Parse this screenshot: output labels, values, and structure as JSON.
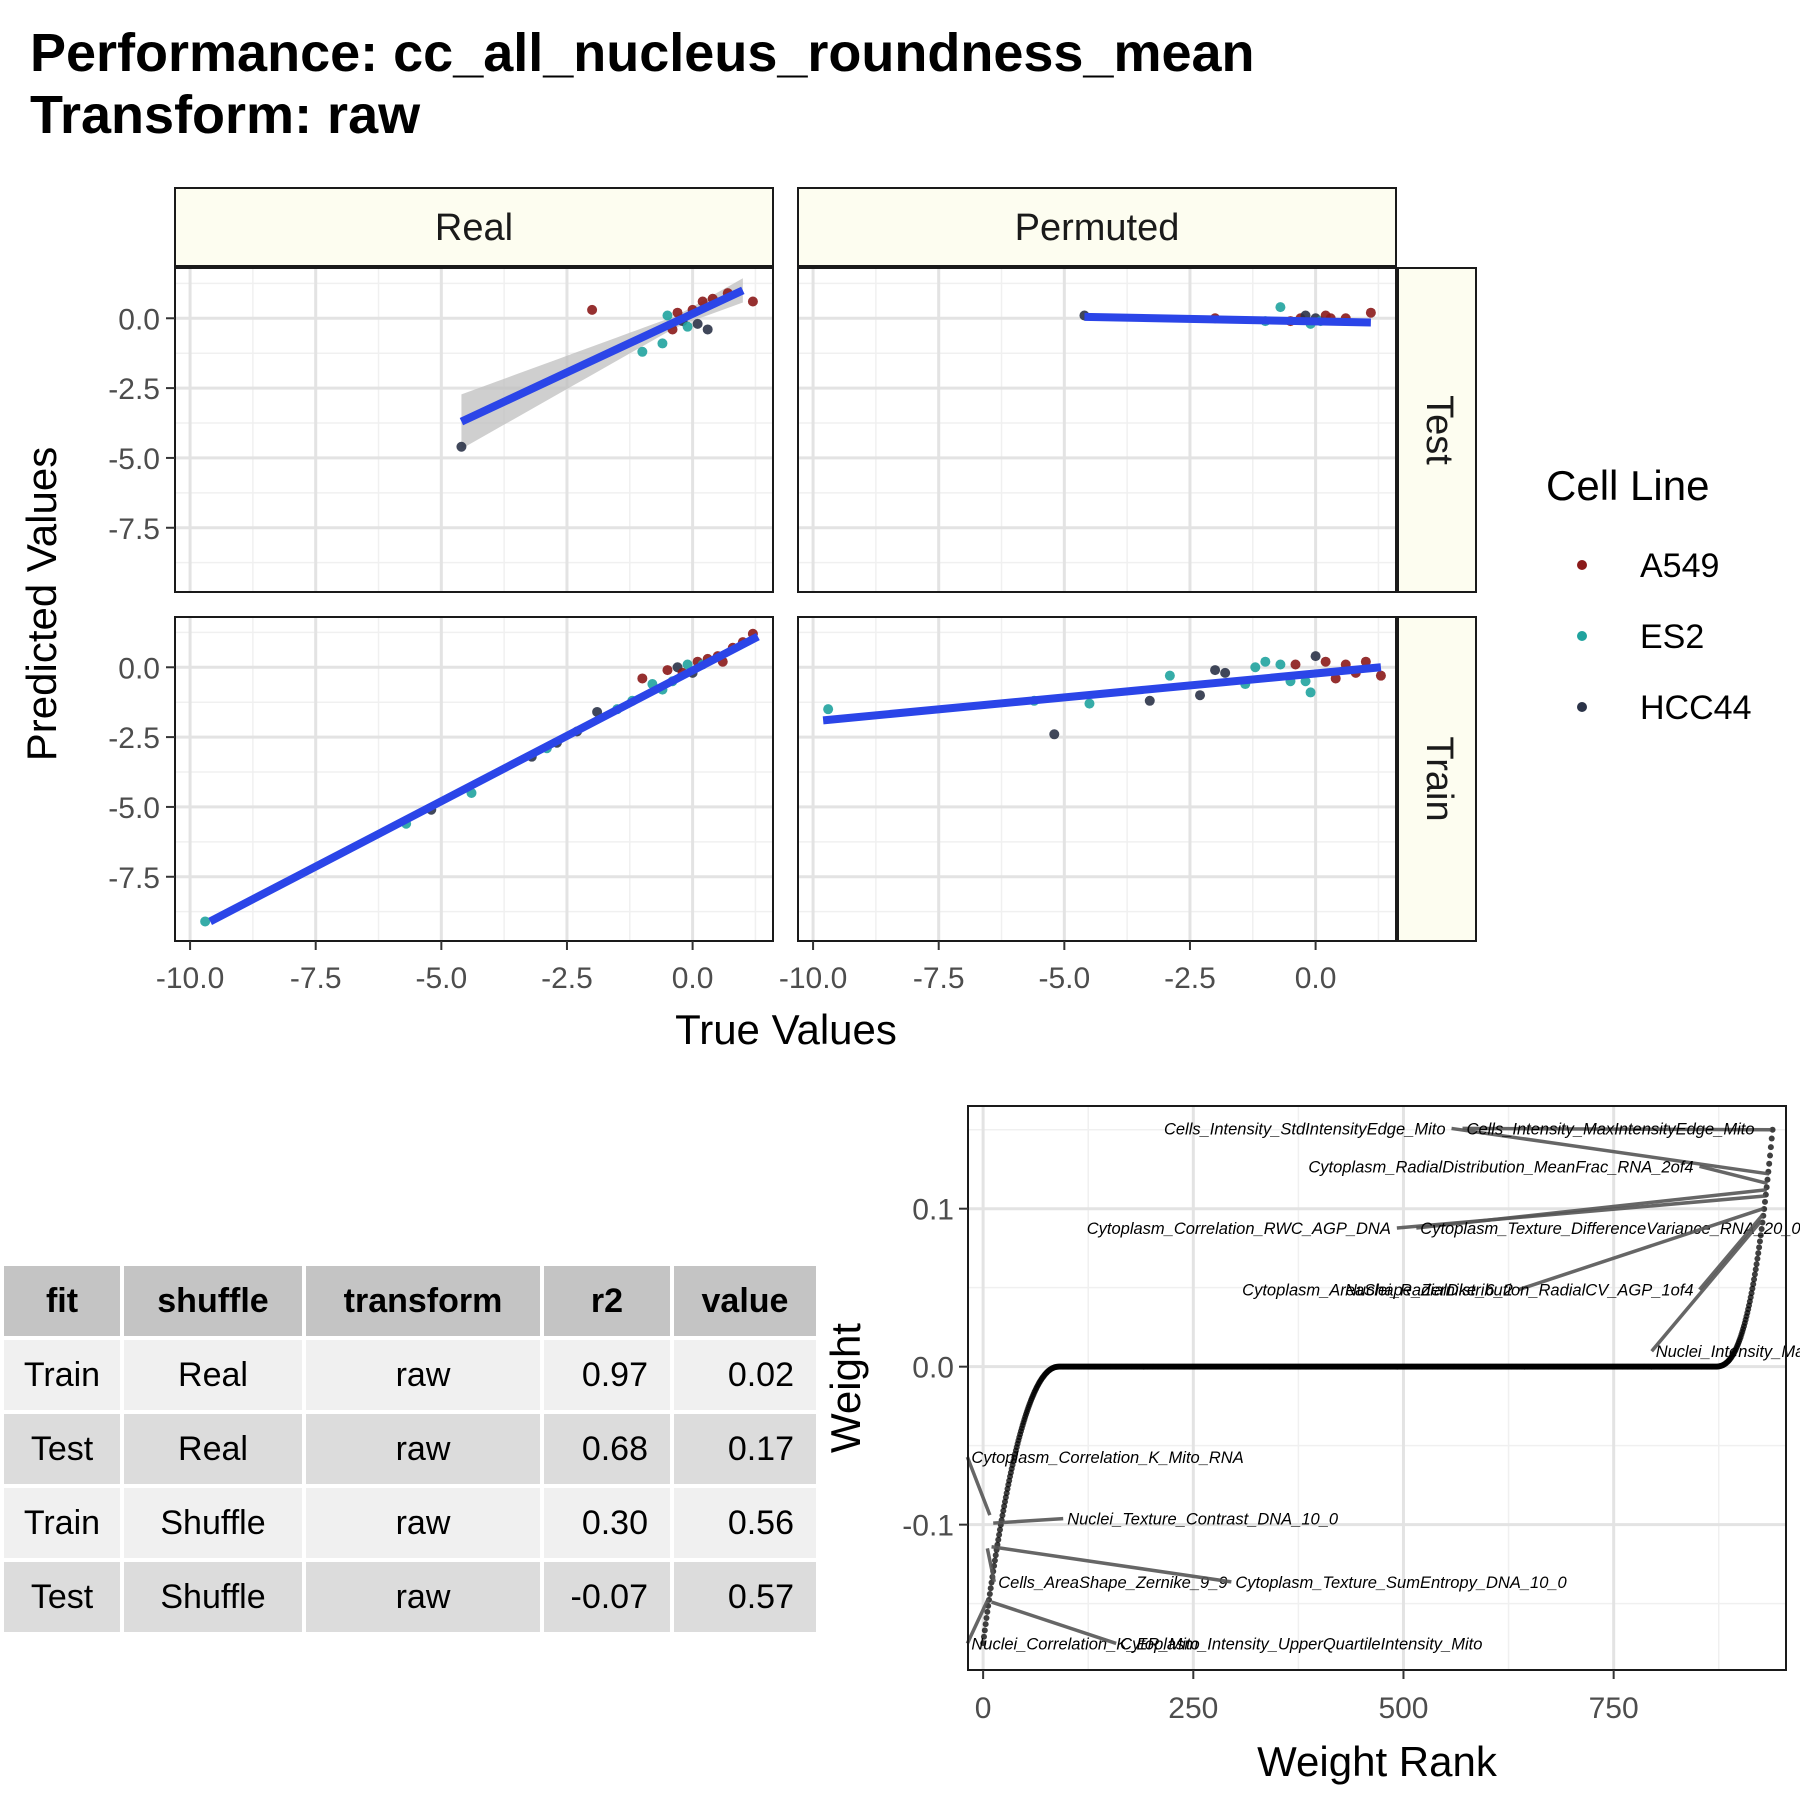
{
  "title_line1": "Performance: cc_all_nucleus_roundness_mean",
  "title_line2": "Transform: raw",
  "chart_data": [
    {
      "type": "scatter",
      "xlabel": "True Values",
      "ylabel": "Predicted Values",
      "xlim": [
        -10.3,
        1.6
      ],
      "ylim": [
        -9.8,
        1.8
      ],
      "x_ticks": [
        -10.0,
        -7.5,
        -5.0,
        -2.5,
        0.0
      ],
      "y_ticks": [
        0.0,
        -2.5,
        -5.0,
        -7.5
      ],
      "x_tick_labels": [
        "-10.0",
        "-7.5",
        "-5.0",
        "-2.5",
        "0.0"
      ],
      "y_tick_labels": [
        "0.0",
        "-2.5",
        "-5.0",
        "-7.5"
      ],
      "facet_columns": [
        "Real",
        "Permuted"
      ],
      "facet_rows": [
        "Test",
        "Train"
      ],
      "grid": true,
      "legend": {
        "title": "Cell Line",
        "position": "right",
        "entries": [
          {
            "name": "A549",
            "color": "#8b1a1a"
          },
          {
            "name": "ES2",
            "color": "#20a39e"
          },
          {
            "name": "HCC44",
            "color": "#2b3348"
          }
        ]
      },
      "fit_line_color": "#2b45e8",
      "panels": [
        {
          "column": "Real",
          "row": "Test",
          "fit": [
            [
              -4.6,
              -3.7
            ],
            [
              1.0,
              1.0
            ]
          ],
          "ci": true,
          "points": [
            {
              "x": -4.6,
              "y": -4.6,
              "g": "HCC44"
            },
            {
              "x": -2.0,
              "y": 0.3,
              "g": "A549"
            },
            {
              "x": -1.0,
              "y": -1.2,
              "g": "ES2"
            },
            {
              "x": -0.6,
              "y": -0.9,
              "g": "ES2"
            },
            {
              "x": -0.5,
              "y": 0.1,
              "g": "ES2"
            },
            {
              "x": -0.4,
              "y": -0.4,
              "g": "A549"
            },
            {
              "x": -0.3,
              "y": 0.2,
              "g": "A549"
            },
            {
              "x": -0.2,
              "y": -0.1,
              "g": "HCC44"
            },
            {
              "x": -0.1,
              "y": -0.3,
              "g": "ES2"
            },
            {
              "x": 0.0,
              "y": 0.3,
              "g": "A549"
            },
            {
              "x": 0.1,
              "y": -0.2,
              "g": "HCC44"
            },
            {
              "x": 0.2,
              "y": 0.6,
              "g": "A549"
            },
            {
              "x": 0.3,
              "y": -0.4,
              "g": "HCC44"
            },
            {
              "x": 0.4,
              "y": 0.7,
              "g": "A549"
            },
            {
              "x": 0.7,
              "y": 0.9,
              "g": "A549"
            },
            {
              "x": 1.2,
              "y": 0.6,
              "g": "A549"
            }
          ]
        },
        {
          "column": "Permuted",
          "row": "Test",
          "fit": [
            [
              -4.6,
              0.05
            ],
            [
              1.1,
              -0.15
            ]
          ],
          "ci": false,
          "points": [
            {
              "x": -4.6,
              "y": 0.1,
              "g": "HCC44"
            },
            {
              "x": -2.0,
              "y": 0.0,
              "g": "A549"
            },
            {
              "x": -1.0,
              "y": -0.1,
              "g": "ES2"
            },
            {
              "x": -0.7,
              "y": 0.4,
              "g": "ES2"
            },
            {
              "x": -0.5,
              "y": -0.1,
              "g": "A549"
            },
            {
              "x": -0.3,
              "y": 0.0,
              "g": "A549"
            },
            {
              "x": -0.2,
              "y": 0.1,
              "g": "HCC44"
            },
            {
              "x": -0.1,
              "y": -0.2,
              "g": "ES2"
            },
            {
              "x": 0.0,
              "y": 0.0,
              "g": "HCC44"
            },
            {
              "x": 0.1,
              "y": -0.1,
              "g": "ES2"
            },
            {
              "x": 0.2,
              "y": 0.1,
              "g": "A549"
            },
            {
              "x": 0.3,
              "y": 0.0,
              "g": "A549"
            },
            {
              "x": 0.6,
              "y": 0.0,
              "g": "A549"
            },
            {
              "x": 1.1,
              "y": 0.2,
              "g": "A549"
            }
          ]
        },
        {
          "column": "Real",
          "row": "Train",
          "fit": [
            [
              -9.6,
              -9.1
            ],
            [
              1.3,
              1.1
            ]
          ],
          "ci": false,
          "points": [
            {
              "x": -9.7,
              "y": -9.1,
              "g": "ES2"
            },
            {
              "x": -5.7,
              "y": -5.6,
              "g": "ES2"
            },
            {
              "x": -5.2,
              "y": -5.1,
              "g": "HCC44"
            },
            {
              "x": -4.4,
              "y": -4.5,
              "g": "ES2"
            },
            {
              "x": -3.2,
              "y": -3.2,
              "g": "HCC44"
            },
            {
              "x": -2.9,
              "y": -2.9,
              "g": "ES2"
            },
            {
              "x": -2.7,
              "y": -2.7,
              "g": "HCC44"
            },
            {
              "x": -2.3,
              "y": -2.3,
              "g": "HCC44"
            },
            {
              "x": -1.9,
              "y": -1.6,
              "g": "HCC44"
            },
            {
              "x": -1.5,
              "y": -1.5,
              "g": "ES2"
            },
            {
              "x": -1.2,
              "y": -1.2,
              "g": "ES2"
            },
            {
              "x": -1.0,
              "y": -0.4,
              "g": "A549"
            },
            {
              "x": -0.8,
              "y": -0.6,
              "g": "ES2"
            },
            {
              "x": -0.6,
              "y": -0.8,
              "g": "ES2"
            },
            {
              "x": -0.5,
              "y": -0.1,
              "g": "A549"
            },
            {
              "x": -0.4,
              "y": -0.5,
              "g": "ES2"
            },
            {
              "x": -0.3,
              "y": 0.0,
              "g": "HCC44"
            },
            {
              "x": -0.2,
              "y": -0.2,
              "g": "A549"
            },
            {
              "x": -0.1,
              "y": 0.1,
              "g": "ES2"
            },
            {
              "x": 0.0,
              "y": -0.2,
              "g": "HCC44"
            },
            {
              "x": 0.1,
              "y": 0.2,
              "g": "A549"
            },
            {
              "x": 0.2,
              "y": 0.1,
              "g": "ES2"
            },
            {
              "x": 0.3,
              "y": 0.3,
              "g": "A549"
            },
            {
              "x": 0.5,
              "y": 0.4,
              "g": "A549"
            },
            {
              "x": 0.6,
              "y": 0.2,
              "g": "A549"
            },
            {
              "x": 0.8,
              "y": 0.7,
              "g": "A549"
            },
            {
              "x": 1.0,
              "y": 0.9,
              "g": "A549"
            },
            {
              "x": 1.2,
              "y": 1.2,
              "g": "A549"
            }
          ]
        },
        {
          "column": "Permuted",
          "row": "Train",
          "fit": [
            [
              -9.8,
              -1.9
            ],
            [
              1.3,
              0.0
            ]
          ],
          "ci": false,
          "points": [
            {
              "x": -9.7,
              "y": -1.5,
              "g": "ES2"
            },
            {
              "x": -5.6,
              "y": -1.2,
              "g": "ES2"
            },
            {
              "x": -5.2,
              "y": -2.4,
              "g": "HCC44"
            },
            {
              "x": -4.5,
              "y": -1.3,
              "g": "ES2"
            },
            {
              "x": -3.3,
              "y": -1.2,
              "g": "HCC44"
            },
            {
              "x": -2.9,
              "y": -0.3,
              "g": "ES2"
            },
            {
              "x": -2.3,
              "y": -1.0,
              "g": "HCC44"
            },
            {
              "x": -2.0,
              "y": -0.1,
              "g": "HCC44"
            },
            {
              "x": -1.8,
              "y": -0.2,
              "g": "HCC44"
            },
            {
              "x": -1.4,
              "y": -0.6,
              "g": "ES2"
            },
            {
              "x": -1.2,
              "y": 0.0,
              "g": "ES2"
            },
            {
              "x": -1.0,
              "y": 0.2,
              "g": "ES2"
            },
            {
              "x": -0.7,
              "y": 0.1,
              "g": "ES2"
            },
            {
              "x": -0.5,
              "y": -0.5,
              "g": "ES2"
            },
            {
              "x": -0.4,
              "y": 0.1,
              "g": "A549"
            },
            {
              "x": -0.2,
              "y": -0.5,
              "g": "ES2"
            },
            {
              "x": -0.1,
              "y": -0.9,
              "g": "ES2"
            },
            {
              "x": 0.0,
              "y": 0.4,
              "g": "HCC44"
            },
            {
              "x": 0.2,
              "y": 0.2,
              "g": "A549"
            },
            {
              "x": 0.4,
              "y": -0.4,
              "g": "A549"
            },
            {
              "x": 0.6,
              "y": 0.1,
              "g": "A549"
            },
            {
              "x": 0.8,
              "y": -0.2,
              "g": "A549"
            },
            {
              "x": 1.0,
              "y": 0.2,
              "g": "A549"
            },
            {
              "x": 1.3,
              "y": -0.3,
              "g": "A549"
            }
          ]
        }
      ]
    },
    {
      "type": "table",
      "columns": [
        "fit",
        "shuffle",
        "transform",
        "r2",
        "value"
      ],
      "rows": [
        [
          "Train",
          "Real",
          "raw",
          "0.97",
          "0.02"
        ],
        [
          "Test",
          "Real",
          "raw",
          "0.68",
          "0.17"
        ],
        [
          "Train",
          "Shuffle",
          "raw",
          "0.30",
          "0.56"
        ],
        [
          "Test",
          "Shuffle",
          "raw",
          "-0.07",
          "0.57"
        ]
      ]
    },
    {
      "type": "scatter",
      "xlabel": "Weight Rank",
      "ylabel": "Weight",
      "xlim": [
        -18,
        955
      ],
      "ylim": [
        -0.192,
        0.165
      ],
      "x_ticks": [
        0,
        250,
        500,
        750
      ],
      "y_ticks": [
        0.1,
        0.0,
        -0.1
      ],
      "x_tick_labels": [
        "0",
        "250",
        "500",
        "750"
      ],
      "y_tick_labels": [
        "0.1",
        "0.0",
        "-0.1"
      ],
      "grid": true,
      "point_color": "#000000",
      "curve": {
        "n": 940,
        "zero_start": 90,
        "zero_end": 870,
        "left_min": -0.175,
        "right_max": 0.15
      },
      "labels": [
        {
          "text": "Cells_Intensity_StdIntensityEdge_Mito",
          "at": [
            550,
            0.147
          ],
          "point": [
            935,
            0.122
          ],
          "align": "end"
        },
        {
          "text": "Cells_Intensity_MaxIntensityEdge_Mito",
          "at": [
            575,
            0.147
          ],
          "point": [
            937,
            0.15
          ],
          "align": "start"
        },
        {
          "text": "Cytoplasm_RadialDistribution_MeanFrac_RNA_2of4",
          "at": [
            845,
            0.123
          ],
          "point": [
            933,
            0.116
          ],
          "align": "end"
        },
        {
          "text": "Cytoplasm_Correlation_RWC_AGP_DNA",
          "at": [
            485,
            0.084
          ],
          "point": [
            930,
            0.108
          ],
          "align": "end"
        },
        {
          "text": "Cytoplasm_Texture_DifferenceVariance_RNA_20_0",
          "at": [
            520,
            0.084
          ],
          "point": [
            932,
            0.112
          ],
          "align": "start"
        },
        {
          "text": "Cytoplasm_AreaShape_Zernike_6_2",
          "at": [
            630,
            0.045
          ],
          "point": [
            928,
            0.1
          ],
          "align": "end"
        },
        {
          "text": "Nuclei_RadialDistribution_RadialCV_AGP_1of4",
          "at": [
            845,
            0.045
          ],
          "point": [
            927,
            0.096
          ],
          "align": "end"
        },
        {
          "text": "Nuclei_Intensity_MassDisplacement_ER",
          "at": [
            800,
            0.006
          ],
          "point": [
            925,
            0.092
          ],
          "align": "start"
        },
        {
          "text": "Cytoplasm_Correlation_K_Mito_RNA",
          "at": [
            -14,
            -0.061
          ],
          "point": [
            8,
            -0.094
          ],
          "align": "start"
        },
        {
          "text": "Nuclei_Texture_Contrast_DNA_10_0",
          "at": [
            100,
            -0.1
          ],
          "point": [
            12,
            -0.099
          ],
          "align": "start"
        },
        {
          "text": "Cells_AreaShape_Zernike_9_9",
          "at": [
            18,
            -0.14
          ],
          "point": [
            5,
            -0.115
          ],
          "align": "start"
        },
        {
          "text": "Cytoplasm_Texture_SumEntropy_DNA_10_0",
          "at": [
            300,
            -0.14
          ],
          "point": [
            10,
            -0.114
          ],
          "align": "start"
        },
        {
          "text": "Nuclei_Correlation_K_ER_Mito",
          "at": [
            -14,
            -0.179
          ],
          "point": [
            6,
            -0.147
          ],
          "align": "start"
        },
        {
          "text": "Cytoplasm_Intensity_UpperQuartileIntensity_Mito",
          "at": [
            163,
            -0.179
          ],
          "point": [
            10,
            -0.149
          ],
          "align": "start"
        }
      ]
    }
  ]
}
